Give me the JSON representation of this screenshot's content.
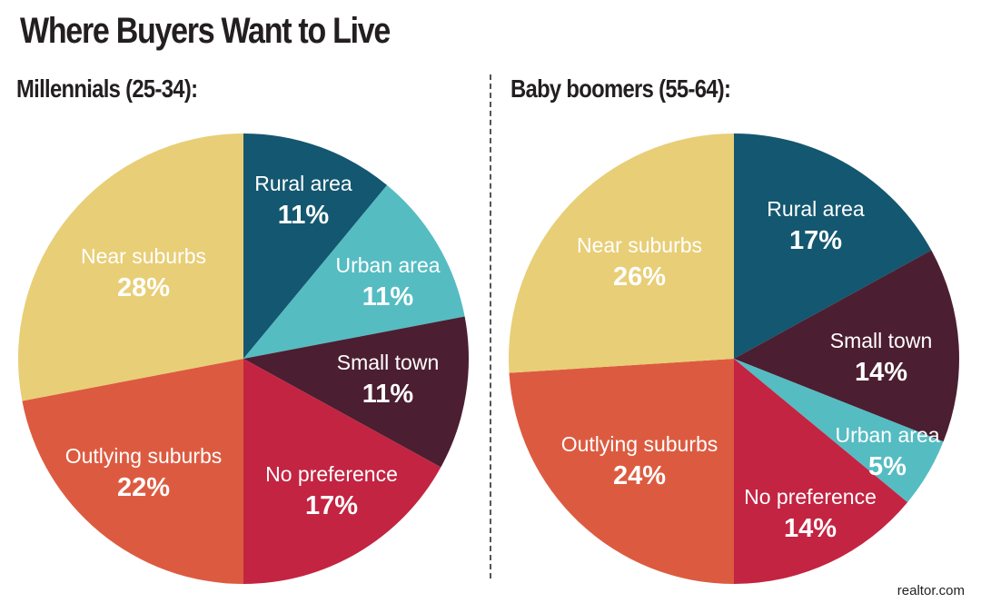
{
  "title": "Where Buyers Want to Live",
  "source": "realtor.com",
  "colors": {
    "Rural area": "#145770",
    "Urban area": "#55bcc2",
    "Small town": "#4c1e31",
    "No preference": "#c32442",
    "Outlying suburbs": "#dc5b40",
    "Near suburbs": "#e8ce76"
  },
  "chart_data": [
    {
      "type": "pie",
      "title": "Millennials (25-34):",
      "start": "12 o'clock, clockwise",
      "slices": [
        {
          "label": "Rural area",
          "value": 11,
          "display": "11%"
        },
        {
          "label": "Urban area",
          "value": 11,
          "display": "11%"
        },
        {
          "label": "Small town",
          "value": 11,
          "display": "11%"
        },
        {
          "label": "No preference",
          "value": 17,
          "display": "17%"
        },
        {
          "label": "Outlying suburbs",
          "value": 22,
          "display": "22%"
        },
        {
          "label": "Near suburbs",
          "value": 28,
          "display": "28%"
        }
      ]
    },
    {
      "type": "pie",
      "title": "Baby boomers (55-64):",
      "start": "12 o'clock, clockwise",
      "slices": [
        {
          "label": "Rural area",
          "value": 17,
          "display": "17%"
        },
        {
          "label": "Small town",
          "value": 14,
          "display": "14%"
        },
        {
          "label": "Urban area",
          "value": 5,
          "display": "5%"
        },
        {
          "label": "No preference",
          "value": 14,
          "display": "14%"
        },
        {
          "label": "Outlying suburbs",
          "value": 24,
          "display": "24%"
        },
        {
          "label": "Near suburbs",
          "value": 26,
          "display": "26%"
        }
      ]
    }
  ]
}
